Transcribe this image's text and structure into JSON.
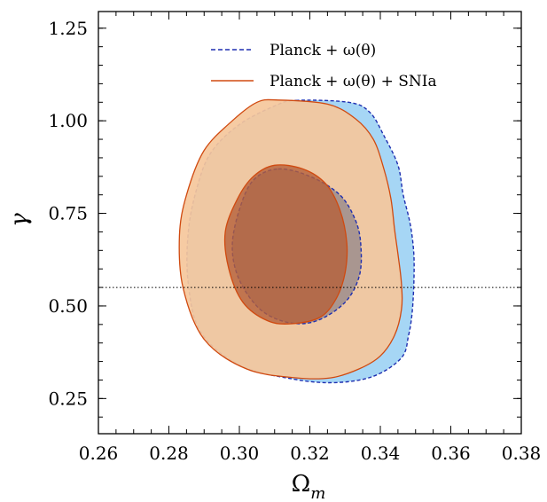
{
  "chart_data": {
    "type": "contour",
    "title": "",
    "xlabel": "Ω",
    "xlabel_sub": "m",
    "ylabel": "γ",
    "xlim": [
      0.26,
      0.38
    ],
    "ylim": [
      0.155,
      1.295
    ],
    "xticks": [
      "0.26",
      "0.28",
      "0.30",
      "0.32",
      "0.34",
      "0.36",
      "0.38"
    ],
    "xtick_values": [
      0.26,
      0.28,
      0.3,
      0.32,
      0.34,
      0.36,
      0.38
    ],
    "yticks": [
      "0.25",
      "0.50",
      "0.75",
      "1.00",
      "1.25"
    ],
    "ytick_values": [
      0.25,
      0.5,
      0.75,
      1.0,
      1.25
    ],
    "reference_line": {
      "axis": "y",
      "value": 0.55,
      "style": "dotted"
    },
    "legend_position": "top-center",
    "series": [
      {
        "name": "Planck + ω(θ)",
        "line_style": "dashed",
        "line_color": "#1f2fb0",
        "contours": [
          {
            "level": "outer",
            "fill": "#a6d6f5",
            "points": [
              [
                0.316,
                1.055
              ],
              [
                0.331,
                1.05
              ],
              [
                0.337,
                1.023
              ],
              [
                0.341,
                0.96
              ],
              [
                0.345,
                0.88
              ],
              [
                0.3465,
                0.8
              ],
              [
                0.3485,
                0.72
              ],
              [
                0.3495,
                0.64
              ],
              [
                0.3495,
                0.56
              ],
              [
                0.349,
                0.48
              ],
              [
                0.348,
                0.42
              ],
              [
                0.346,
                0.36
              ],
              [
                0.338,
                0.31
              ],
              [
                0.327,
                0.293
              ],
              [
                0.315,
                0.303
              ],
              [
                0.3,
                0.34
              ],
              [
                0.289,
                0.43
              ],
              [
                0.2855,
                0.56
              ],
              [
                0.2855,
                0.7
              ],
              [
                0.288,
                0.82
              ],
              [
                0.292,
                0.915
              ],
              [
                0.3,
                0.99
              ],
              [
                0.31,
                1.04
              ]
            ]
          },
          {
            "level": "inner",
            "fill": "#9c8d8d",
            "points": [
              [
                0.311,
                0.87
              ],
              [
                0.32,
                0.85
              ],
              [
                0.3285,
                0.8
              ],
              [
                0.333,
                0.73
              ],
              [
                0.3345,
                0.66
              ],
              [
                0.334,
                0.58
              ],
              [
                0.33,
                0.51
              ],
              [
                0.322,
                0.46
              ],
              [
                0.314,
                0.455
              ],
              [
                0.306,
                0.49
              ],
              [
                0.3,
                0.57
              ],
              [
                0.298,
                0.66
              ],
              [
                0.3,
                0.76
              ],
              [
                0.304,
                0.84
              ]
            ]
          }
        ]
      },
      {
        "name": "Planck + ω(θ) + SNIa",
        "line_style": "solid",
        "line_color": "#d04a10",
        "contours": [
          {
            "level": "outer",
            "fill": "#f5c79b",
            "points": [
              [
                0.311,
                1.056
              ],
              [
                0.325,
                1.045
              ],
              [
                0.333,
                1.005
              ],
              [
                0.338,
                0.95
              ],
              [
                0.341,
                0.87
              ],
              [
                0.343,
                0.79
              ],
              [
                0.344,
                0.71
              ],
              [
                0.345,
                0.64
              ],
              [
                0.346,
                0.56
              ],
              [
                0.346,
                0.49
              ],
              [
                0.344,
                0.42
              ],
              [
                0.34,
                0.365
              ],
              [
                0.334,
                0.33
              ],
              [
                0.326,
                0.306
              ],
              [
                0.316,
                0.306
              ],
              [
                0.302,
                0.33
              ],
              [
                0.29,
                0.41
              ],
              [
                0.284,
                0.55
              ],
              [
                0.283,
                0.69
              ],
              [
                0.285,
                0.8
              ],
              [
                0.29,
                0.92
              ],
              [
                0.298,
                1.0
              ],
              [
                0.305,
                1.05
              ]
            ]
          },
          {
            "level": "inner",
            "fill": "#b5603a",
            "points": [
              [
                0.31,
                0.88
              ],
              [
                0.318,
                0.87
              ],
              [
                0.3245,
                0.83
              ],
              [
                0.3285,
                0.76
              ],
              [
                0.3305,
                0.67
              ],
              [
                0.33,
                0.59
              ],
              [
                0.3275,
                0.52
              ],
              [
                0.323,
                0.47
              ],
              [
                0.315,
                0.452
              ],
              [
                0.308,
                0.46
              ],
              [
                0.301,
                0.51
              ],
              [
                0.297,
                0.6
              ],
              [
                0.296,
                0.7
              ],
              [
                0.2995,
                0.79
              ],
              [
                0.304,
                0.85
              ]
            ]
          }
        ]
      }
    ]
  }
}
